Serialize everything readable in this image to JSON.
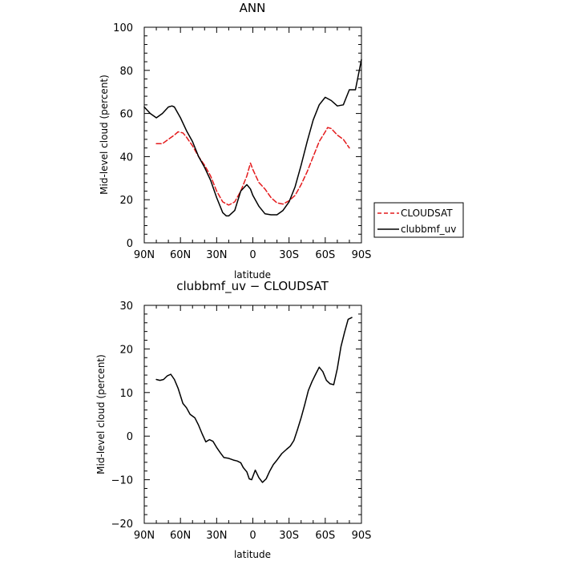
{
  "chart_data": [
    {
      "type": "line",
      "title": "ANN",
      "xlabel": "latitude",
      "ylabel": "Mid-level cloud (percent)",
      "xlim": [
        90,
        -90
      ],
      "ylim": [
        0,
        100
      ],
      "x_ticks": [
        90,
        60,
        30,
        0,
        -30,
        -60,
        -90
      ],
      "x_tick_labels": [
        "90N",
        "60N",
        "30N",
        "0",
        "30S",
        "60S",
        "90S"
      ],
      "y_ticks": [
        0,
        20,
        40,
        60,
        80,
        100
      ],
      "y_tick_labels": [
        "0",
        "20",
        "40",
        "60",
        "80",
        "100"
      ],
      "grid": false,
      "legend_position": "right",
      "series": [
        {
          "name": "CLOUDSAT",
          "color": "#e41a1c",
          "dash": "dashed",
          "x": [
            80,
            75,
            70,
            65,
            62,
            58,
            55,
            50,
            45,
            40,
            35,
            30,
            25,
            20,
            15,
            10,
            5,
            2,
            0,
            -5,
            -10,
            -15,
            -20,
            -25,
            -30,
            -35,
            -40,
            -45,
            -50,
            -55,
            -60,
            -62,
            -65,
            -70,
            -75,
            -80
          ],
          "y": [
            46,
            46,
            48,
            50,
            51.5,
            51,
            49,
            45,
            40,
            36,
            31,
            24,
            19,
            17.5,
            19,
            24,
            31,
            37,
            34,
            28,
            25,
            21,
            18.5,
            18,
            19.5,
            22,
            27,
            33,
            40,
            47,
            51.5,
            53.5,
            53,
            50,
            48,
            44
          ]
        },
        {
          "name": "clubbmf_uv",
          "color": "#000000",
          "dash": "solid",
          "x": [
            90,
            85,
            80,
            75,
            70,
            67,
            65,
            60,
            55,
            50,
            45,
            40,
            35,
            30,
            25,
            22,
            20,
            15,
            10,
            5,
            2,
            0,
            -5,
            -10,
            -15,
            -20,
            -25,
            -30,
            -35,
            -40,
            -45,
            -50,
            -55,
            -60,
            -65,
            -70,
            -75,
            -80,
            -85,
            -90
          ],
          "y": [
            63,
            60,
            58,
            60,
            63,
            63.5,
            63,
            58,
            52,
            47,
            40,
            35,
            29,
            21,
            14,
            12.5,
            12.5,
            15,
            24,
            27,
            25,
            22,
            17,
            13.5,
            13,
            13,
            15,
            19,
            26,
            36,
            47,
            57,
            64,
            67.5,
            66,
            63.5,
            64,
            71,
            71,
            85
          ]
        }
      ]
    },
    {
      "type": "line",
      "title": "clubbmf_uv − CLOUDSAT",
      "xlabel": "latitude",
      "ylabel": "Mid-level cloud (percent)",
      "xlim": [
        90,
        -90
      ],
      "ylim": [
        -20,
        30
      ],
      "x_ticks": [
        90,
        60,
        30,
        0,
        -30,
        -60,
        -90
      ],
      "x_tick_labels": [
        "90N",
        "60N",
        "30N",
        "0",
        "30S",
        "60S",
        "90S"
      ],
      "y_ticks": [
        -20,
        -10,
        0,
        10,
        20,
        30
      ],
      "y_tick_labels": [
        "−20",
        "−10",
        "0",
        "10",
        "20",
        "30"
      ],
      "grid": false,
      "series": [
        {
          "color": "#000000",
          "dash": "solid",
          "x": [
            80,
            77,
            74,
            71,
            68,
            65,
            62,
            58,
            55,
            52,
            48,
            45,
            42,
            39,
            36,
            33,
            30,
            27,
            24,
            20,
            16,
            13,
            10,
            8,
            5,
            3,
            1,
            -2,
            -5,
            -8,
            -11,
            -14,
            -17,
            -20,
            -24,
            -28,
            -31,
            -34,
            -37,
            -40,
            -43,
            -46,
            -49,
            -52,
            -55,
            -58,
            -61,
            -64,
            -67,
            -70,
            -73,
            -76,
            -79,
            -82
          ],
          "y": [
            13,
            12.8,
            13,
            13.8,
            14.2,
            13,
            11,
            7.5,
            6.5,
            5,
            4.2,
            2.5,
            0.5,
            -1.3,
            -0.8,
            -1.2,
            -2.6,
            -3.8,
            -4.9,
            -5.1,
            -5.5,
            -5.7,
            -6.1,
            -7.2,
            -8.2,
            -9.8,
            -10,
            -7.8,
            -9.5,
            -10.6,
            -9.8,
            -8,
            -6.5,
            -5.5,
            -4,
            -3,
            -2.3,
            -1,
            1.5,
            4.2,
            7.2,
            10.5,
            12.5,
            14.2,
            15.8,
            14.8,
            12.8,
            12,
            11.8,
            15.5,
            20.5,
            23.8,
            26.8,
            27.2
          ]
        }
      ]
    }
  ],
  "legend": {
    "entries": [
      "CLOUDSAT",
      "clubbmf_uv"
    ]
  }
}
